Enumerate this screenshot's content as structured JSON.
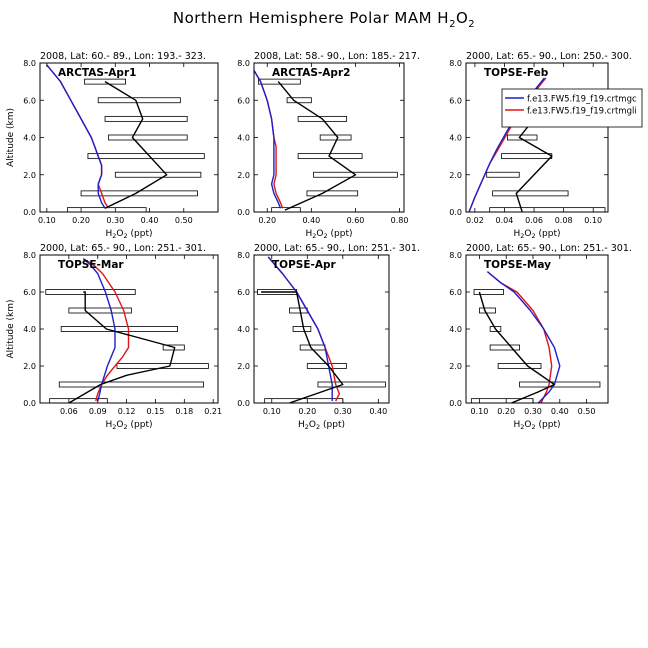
{
  "title_text": "Northern Hemisphere Polar MAM H",
  "title_sub": "2",
  "title_tail": "O",
  "title_sub2": "2",
  "colors": {
    "model_a": "#1f1fd0",
    "model_b": "#e01515",
    "obs": "#000000",
    "bar": "#000000"
  },
  "legend": {
    "entries": [
      "f.e13.FW5.f19_f19.crtmgc",
      "f.e13.FW5.f19_f19.crtmgli"
    ]
  },
  "chart_data": [
    {
      "type": "line",
      "header": "2008, Lat:  60.- 89., Lon: 193.- 323.",
      "label": "ARCTAS-Apr1",
      "xlim": [
        0.08,
        0.6
      ],
      "ylim": [
        0,
        8
      ],
      "xticks": [
        "0.10",
        "0.20",
        "0.30",
        "0.40",
        "0.50"
      ],
      "xtick_values": [
        0.1,
        0.2,
        0.3,
        0.4,
        0.5
      ],
      "yticks": [
        "0.0",
        "2.0",
        "4.0",
        "6.0",
        "8.0"
      ],
      "show_ylabel": true,
      "xlabel": "H2O2 (ppt)",
      "model_a": {
        "x": [
          0.1,
          0.14,
          0.17,
          0.2,
          0.23,
          0.24,
          0.25,
          0.26,
          0.26,
          0.25,
          0.25,
          0.26,
          0.27
        ],
        "y": [
          7.9,
          7.0,
          6.0,
          5.0,
          4.0,
          3.5,
          3.0,
          2.5,
          2.0,
          1.5,
          1.0,
          0.5,
          0.2
        ]
      },
      "model_b": {
        "x": [
          0.1,
          0.14,
          0.17,
          0.2,
          0.23,
          0.24,
          0.25,
          0.26,
          0.26,
          0.25,
          0.26,
          0.27,
          0.28
        ],
        "y": [
          7.9,
          7.0,
          6.0,
          5.0,
          4.0,
          3.5,
          3.0,
          2.5,
          2.0,
          1.5,
          1.0,
          0.5,
          0.2
        ]
      },
      "obs": {
        "x": [
          0.27,
          0.36,
          0.38,
          0.35,
          0.45,
          0.36,
          0.27
        ],
        "y": [
          7.0,
          6.0,
          5.0,
          4.0,
          2.0,
          1.0,
          0.2
        ]
      },
      "bars": [
        {
          "y": 7.0,
          "x0": 0.21,
          "x1": 0.33
        },
        {
          "y": 6.0,
          "x0": 0.25,
          "x1": 0.49
        },
        {
          "y": 5.0,
          "x0": 0.27,
          "x1": 0.51
        },
        {
          "y": 4.0,
          "x0": 0.28,
          "x1": 0.51
        },
        {
          "y": 3.0,
          "x0": 0.22,
          "x1": 0.56
        },
        {
          "y": 2.0,
          "x0": 0.3,
          "x1": 0.55
        },
        {
          "y": 1.0,
          "x0": 0.2,
          "x1": 0.54
        },
        {
          "y": 0.1,
          "x0": 0.16,
          "x1": 0.39
        }
      ]
    },
    {
      "type": "line",
      "header": "2008, Lat:  58.- 90., Lon: 185.- 217.",
      "label": "ARCTAS-Apr2",
      "xlim": [
        0.14,
        0.82
      ],
      "ylim": [
        0,
        8
      ],
      "xticks": [
        "0.20",
        "0.40",
        "0.60",
        "0.80"
      ],
      "xtick_values": [
        0.2,
        0.4,
        0.6,
        0.8
      ],
      "yticks": [
        "0.0",
        "2.0",
        "4.0",
        "6.0",
        "8.0"
      ],
      "show_ylabel": false,
      "xlabel": "H2O2 (ppt)",
      "model_a": {
        "x": [
          0.14,
          0.17,
          0.2,
          0.22,
          0.23,
          0.23,
          0.23,
          0.23,
          0.23,
          0.22,
          0.23,
          0.25,
          0.26
        ],
        "y": [
          7.6,
          7.0,
          6.0,
          5.0,
          4.0,
          3.5,
          3.0,
          2.5,
          2.0,
          1.5,
          1.0,
          0.5,
          0.2
        ]
      },
      "model_b": {
        "x": [
          0.14,
          0.17,
          0.2,
          0.22,
          0.23,
          0.24,
          0.24,
          0.24,
          0.24,
          0.23,
          0.24,
          0.26,
          0.27
        ],
        "y": [
          7.6,
          7.0,
          6.0,
          5.0,
          4.0,
          3.5,
          3.0,
          2.5,
          2.0,
          1.5,
          1.0,
          0.5,
          0.2
        ]
      },
      "obs": {
        "x": [
          0.25,
          0.32,
          0.45,
          0.52,
          0.48,
          0.6,
          0.45,
          0.28
        ],
        "y": [
          7.0,
          6.0,
          5.0,
          4.0,
          3.0,
          2.0,
          1.0,
          0.1
        ]
      },
      "bars": [
        {
          "y": 7.0,
          "x0": 0.16,
          "x1": 0.35
        },
        {
          "y": 6.0,
          "x0": 0.29,
          "x1": 0.4
        },
        {
          "y": 5.0,
          "x0": 0.34,
          "x1": 0.56
        },
        {
          "y": 4.0,
          "x0": 0.44,
          "x1": 0.58
        },
        {
          "y": 3.0,
          "x0": 0.34,
          "x1": 0.63
        },
        {
          "y": 2.0,
          "x0": 0.41,
          "x1": 0.79
        },
        {
          "y": 1.0,
          "x0": 0.38,
          "x1": 0.61
        },
        {
          "y": 0.1,
          "x0": 0.22,
          "x1": 0.35
        }
      ]
    },
    {
      "type": "line",
      "header": "2000, Lat: 65.- 90., Lon: 250.- 300.",
      "label": "TOPSE-Feb",
      "xlim": [
        0.014,
        0.11
      ],
      "ylim": [
        0,
        8
      ],
      "xticks": [
        "0.02",
        "0.04",
        "0.06",
        "0.08",
        "0.10"
      ],
      "xtick_values": [
        0.02,
        0.04,
        0.06,
        0.08,
        0.1
      ],
      "yticks": [
        "0.0",
        "2.0",
        "4.0",
        "6.0",
        "8.0"
      ],
      "show_ylabel": false,
      "xlabel": "H2O2 (ppt)",
      "model_a": {
        "x": [
          0.016,
          0.02,
          0.025,
          0.03,
          0.035,
          0.04,
          0.045,
          0.05,
          0.055,
          0.06,
          0.064,
          0.067
        ],
        "y": [
          0.0,
          0.8,
          1.7,
          2.6,
          3.4,
          4.1,
          4.8,
          5.4,
          6.0,
          6.5,
          6.9,
          7.2
        ]
      },
      "model_b": {
        "x": [
          0.016,
          0.02,
          0.025,
          0.03,
          0.036,
          0.041,
          0.046,
          0.051,
          0.056,
          0.061,
          0.065,
          0.068
        ],
        "y": [
          0.0,
          0.8,
          1.7,
          2.6,
          3.4,
          4.1,
          4.8,
          5.4,
          6.0,
          6.5,
          6.9,
          7.2
        ]
      },
      "obs": {
        "x": [
          0.052,
          0.048,
          0.072,
          0.05,
          0.06,
          0.05,
          0.045
        ],
        "y": [
          0.0,
          1.0,
          3.0,
          4.0,
          5.0,
          6.0,
          6.2
        ]
      },
      "bars": [
        {
          "y": 6.0,
          "x0": 0.046,
          "x1": 0.066
        },
        {
          "y": 5.0,
          "x0": 0.048,
          "x1": 0.09
        },
        {
          "y": 4.0,
          "x0": 0.042,
          "x1": 0.062
        },
        {
          "y": 3.0,
          "x0": 0.038,
          "x1": 0.072
        },
        {
          "y": 2.0,
          "x0": 0.028,
          "x1": 0.05
        },
        {
          "y": 1.0,
          "x0": 0.032,
          "x1": 0.083
        },
        {
          "y": 0.1,
          "x0": 0.03,
          "x1": 0.108
        }
      ]
    },
    {
      "type": "line",
      "header": "2000, Lat: 65.- 90., Lon: 251.- 301.",
      "label": "TOPSE-Mar",
      "xlim": [
        0.03,
        0.215
      ],
      "ylim": [
        0,
        8
      ],
      "xticks": [
        "0.06",
        "0.09",
        "0.12",
        "0.15",
        "0.18",
        "0.21"
      ],
      "xtick_values": [
        0.06,
        0.09,
        0.12,
        0.15,
        0.18,
        0.21
      ],
      "yticks": [
        "0.0",
        "2.0",
        "4.0",
        "6.0",
        "8.0"
      ],
      "show_ylabel": true,
      "xlabel": "H2O2 (ppt)",
      "model_a": {
        "x": [
          0.075,
          0.082,
          0.09,
          0.098,
          0.104,
          0.108,
          0.108,
          0.104,
          0.1,
          0.097,
          0.094,
          0.092,
          0.09
        ],
        "y": [
          7.8,
          7.5,
          7.0,
          6.0,
          5.0,
          4.0,
          3.0,
          2.5,
          2.0,
          1.5,
          1.0,
          0.5,
          0.1
        ]
      },
      "model_b": {
        "x": [
          0.075,
          0.085,
          0.095,
          0.108,
          0.117,
          0.122,
          0.122,
          0.116,
          0.108,
          0.1,
          0.094,
          0.09,
          0.088
        ],
        "y": [
          7.8,
          7.5,
          7.0,
          6.0,
          5.0,
          4.0,
          3.0,
          2.5,
          2.0,
          1.5,
          1.0,
          0.5,
          0.1
        ]
      },
      "obs": {
        "x": [
          0.075,
          0.077,
          0.077,
          0.099,
          0.17,
          0.165,
          0.12,
          0.093,
          0.06
        ],
        "y": [
          6.0,
          6.0,
          5.0,
          4.0,
          3.0,
          2.0,
          1.5,
          1.0,
          0.0
        ]
      },
      "bars": [
        {
          "y": 6.0,
          "x0": 0.036,
          "x1": 0.129
        },
        {
          "y": 5.0,
          "x0": 0.06,
          "x1": 0.125
        },
        {
          "y": 4.0,
          "x0": 0.052,
          "x1": 0.173
        },
        {
          "y": 3.0,
          "x0": 0.158,
          "x1": 0.18
        },
        {
          "y": 2.0,
          "x0": 0.11,
          "x1": 0.205
        },
        {
          "y": 1.0,
          "x0": 0.05,
          "x1": 0.2
        },
        {
          "y": 0.1,
          "x0": 0.04,
          "x1": 0.1
        }
      ]
    },
    {
      "type": "line",
      "header": "2000, Lat: 65.- 90., Lon: 251.- 301.",
      "label": "TOPSE-Apr",
      "xlim": [
        0.05,
        0.43
      ],
      "ylim": [
        0,
        8
      ],
      "xticks": [
        "0.10",
        "0.20",
        "0.30",
        "0.40"
      ],
      "xtick_values": [
        0.1,
        0.2,
        0.3,
        0.4
      ],
      "yticks": [
        "0.0",
        "2.0",
        "4.0",
        "6.0",
        "8.0"
      ],
      "show_ylabel": false,
      "xlabel": "H2O2 (ppt)",
      "model_a": {
        "x": [
          0.09,
          0.13,
          0.17,
          0.2,
          0.23,
          0.25,
          0.26,
          0.27,
          0.27,
          0.27
        ],
        "y": [
          7.9,
          7.0,
          6.0,
          5.0,
          4.0,
          3.0,
          2.0,
          1.0,
          0.5,
          0.1
        ]
      },
      "model_b": {
        "x": [
          0.09,
          0.13,
          0.17,
          0.2,
          0.23,
          0.25,
          0.27,
          0.28,
          0.29,
          0.28
        ],
        "y": [
          7.9,
          7.0,
          6.0,
          5.0,
          4.0,
          3.0,
          2.0,
          1.0,
          0.5,
          0.1
        ]
      },
      "obs": {
        "x": [
          0.07,
          0.17,
          0.18,
          0.19,
          0.21,
          0.26,
          0.3,
          0.15
        ],
        "y": [
          6.0,
          6.0,
          5.0,
          4.0,
          3.0,
          2.0,
          1.0,
          0.0
        ]
      },
      "bars": [
        {
          "y": 6.0,
          "x0": 0.06,
          "x1": 0.17
        },
        {
          "y": 5.0,
          "x0": 0.15,
          "x1": 0.2
        },
        {
          "y": 4.0,
          "x0": 0.16,
          "x1": 0.21
        },
        {
          "y": 3.0,
          "x0": 0.18,
          "x1": 0.25
        },
        {
          "y": 2.0,
          "x0": 0.2,
          "x1": 0.31
        },
        {
          "y": 1.0,
          "x0": 0.23,
          "x1": 0.42
        },
        {
          "y": 0.1,
          "x0": 0.08,
          "x1": 0.3
        }
      ]
    },
    {
      "type": "line",
      "header": "2000, Lat: 65.- 90., Lon: 251.- 301.",
      "label": "TOPSE-May",
      "xlim": [
        0.05,
        0.58
      ],
      "ylim": [
        0,
        8
      ],
      "xticks": [
        "0.10",
        "0.20",
        "0.30",
        "0.40",
        "0.50"
      ],
      "xtick_values": [
        0.1,
        0.2,
        0.3,
        0.4,
        0.5
      ],
      "yticks": [
        "0.0",
        "2.0",
        "4.0",
        "6.0",
        "8.0"
      ],
      "show_ylabel": false,
      "xlabel": "H2O2 (ppt)",
      "model_a": {
        "x": [
          0.13,
          0.18,
          0.23,
          0.29,
          0.34,
          0.38,
          0.4,
          0.38,
          0.36,
          0.34,
          0.32
        ],
        "y": [
          7.1,
          6.5,
          6.0,
          5.0,
          4.0,
          3.0,
          2.0,
          1.0,
          0.6,
          0.3,
          0.0
        ]
      },
      "model_b": {
        "x": [
          0.13,
          0.18,
          0.24,
          0.3,
          0.34,
          0.36,
          0.37,
          0.36,
          0.35,
          0.34,
          0.33
        ],
        "y": [
          7.1,
          6.5,
          6.0,
          5.0,
          4.0,
          3.0,
          2.0,
          1.0,
          0.6,
          0.3,
          0.0
        ]
      },
      "obs": {
        "x": [
          0.1,
          0.12,
          0.16,
          0.22,
          0.28,
          0.38,
          0.32,
          0.22
        ],
        "y": [
          6.0,
          5.0,
          4.0,
          3.0,
          2.0,
          1.0,
          0.6,
          0.0
        ]
      },
      "bars": [
        {
          "y": 6.0,
          "x0": 0.08,
          "x1": 0.19
        },
        {
          "y": 5.0,
          "x0": 0.1,
          "x1": 0.16
        },
        {
          "y": 4.0,
          "x0": 0.14,
          "x1": 0.18
        },
        {
          "y": 3.0,
          "x0": 0.14,
          "x1": 0.25
        },
        {
          "y": 2.0,
          "x0": 0.17,
          "x1": 0.33
        },
        {
          "y": 1.0,
          "x0": 0.25,
          "x1": 0.55
        },
        {
          "y": 0.1,
          "x0": 0.07,
          "x1": 0.3
        }
      ]
    }
  ],
  "ylabel_text": "Altitude (km)"
}
